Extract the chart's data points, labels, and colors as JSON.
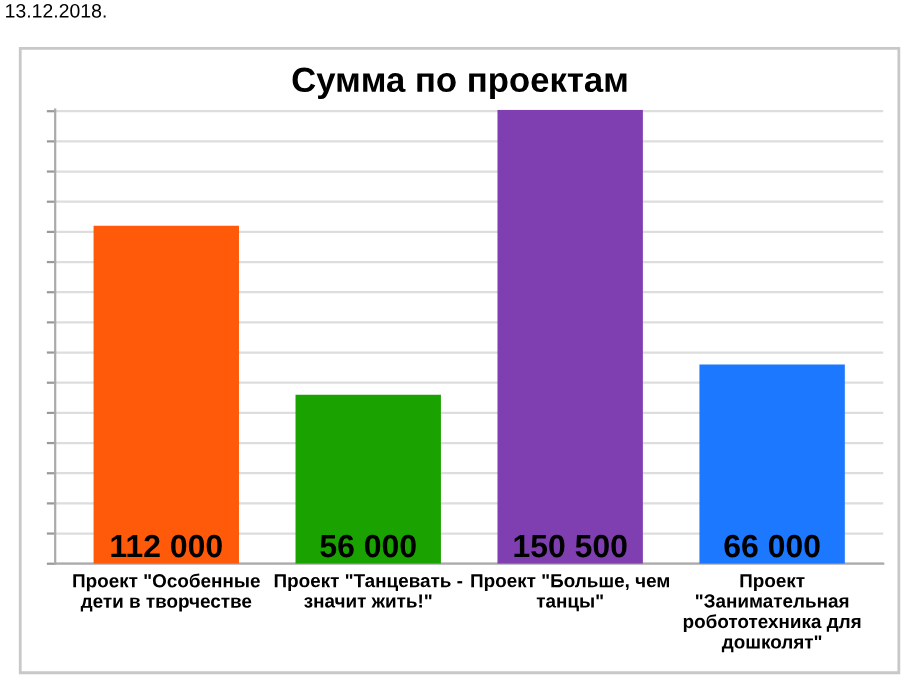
{
  "chart_data": {
    "type": "bar",
    "title": "Сумма по проектам",
    "categories": [
      "Проект \"Особенные\nдети в творчестве",
      "Проект \"Танцевать -\nзначит жить!\"",
      "Проект \"Больше, чем\nтанцы\"",
      "Проект\n\"Занимательная\nробототехника для\nдошколят\""
    ],
    "values": [
      112000,
      56000,
      150500,
      66000
    ],
    "colors": [
      "#ff5a0a",
      "#1aa300",
      "#7f3fb0",
      "#1c78ff"
    ],
    "ylim": [
      0,
      150500
    ],
    "yticks": [
      {
        "value": 0,
        "label": null
      },
      {
        "value": 10000,
        "label": null
      },
      {
        "value": 20000,
        "label": null
      },
      {
        "value": 30000,
        "label": null
      },
      {
        "value": 40000,
        "label": null
      },
      {
        "value": 50000,
        "label": null
      },
      {
        "value": 60000,
        "label": null
      },
      {
        "value": 70000,
        "label": null
      },
      {
        "value": 80000,
        "label": null
      },
      {
        "value": 90000,
        "label": null
      },
      {
        "value": 100000,
        "label": null
      },
      {
        "value": 110000,
        "label": null
      },
      {
        "value": 120000,
        "label": null
      },
      {
        "value": 130000,
        "label": null
      },
      {
        "value": 140000,
        "label": null
      },
      {
        "value": 150000,
        "label": null
      }
    ],
    "grid": "y",
    "value_labels": [
      "112 000",
      "56 000",
      "150 500",
      "66 000"
    ],
    "annotations": [
      "13.12.2018."
    ]
  }
}
